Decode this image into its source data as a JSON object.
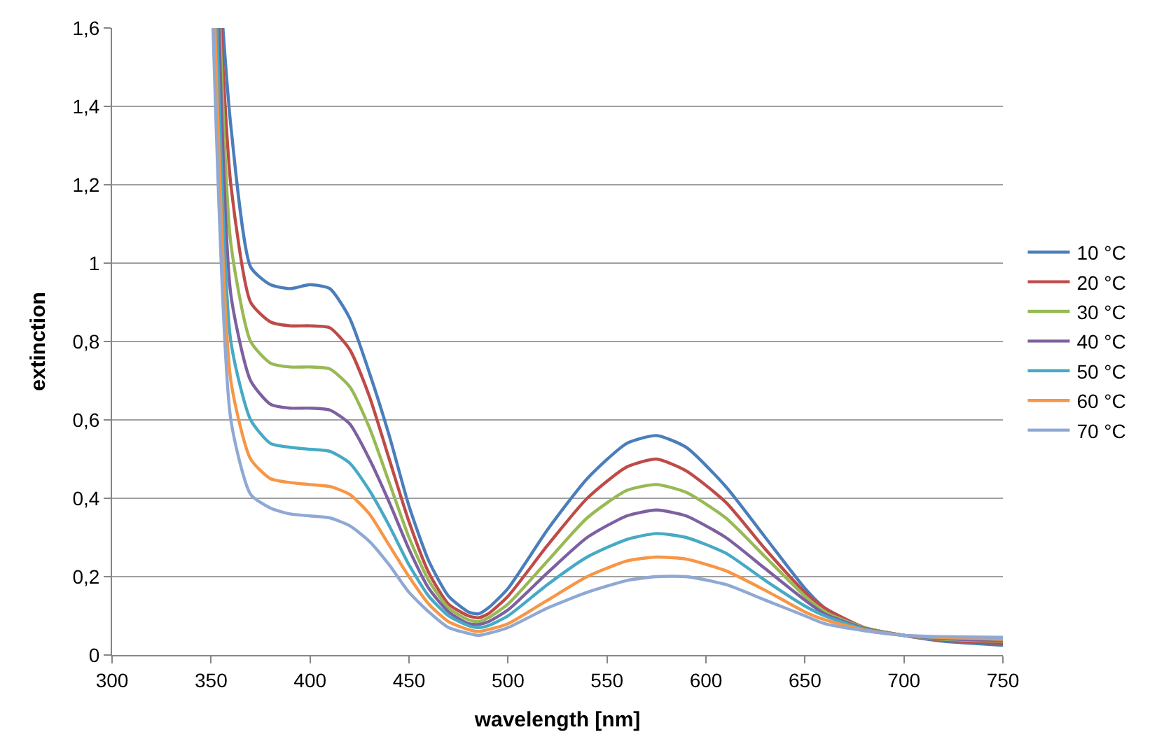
{
  "chart_data": {
    "type": "line",
    "xlabel": "wavelength [nm]",
    "ylabel": "extinction",
    "xlim": [
      300,
      750
    ],
    "xticks": [
      300,
      350,
      400,
      450,
      500,
      550,
      600,
      650,
      700,
      750
    ],
    "ylim": [
      0,
      1.6
    ],
    "yticks": [
      0,
      {
        "value": 0.2,
        "label": "0,2"
      },
      {
        "value": 0.4,
        "label": "0,4"
      },
      {
        "value": 0.6,
        "label": "0,6"
      },
      {
        "value": 0.8,
        "label": "0,8"
      },
      1,
      {
        "value": 1.2,
        "label": "1,2"
      },
      {
        "value": 1.4,
        "label": "1,4"
      },
      {
        "value": 1.6,
        "label": "1,6"
      }
    ],
    "grid": "y",
    "legend": "right",
    "marker": "none",
    "line_style": "solid",
    "series": [
      {
        "name": "10 °C",
        "color": "#4a7ebb",
        "x": [
          356,
          360,
          370,
          380,
          390,
          400,
          410,
          420,
          430,
          440,
          450,
          460,
          470,
          480,
          485,
          490,
          500,
          520,
          540,
          560,
          575,
          590,
          610,
          630,
          650,
          660,
          680,
          700,
          720,
          750
        ],
        "values": [
          1.6,
          1.35,
          0.99,
          0.945,
          0.935,
          0.945,
          0.935,
          0.86,
          0.72,
          0.56,
          0.38,
          0.24,
          0.15,
          0.11,
          0.105,
          0.12,
          0.17,
          0.32,
          0.45,
          0.54,
          0.56,
          0.53,
          0.43,
          0.3,
          0.17,
          0.12,
          0.07,
          0.05,
          0.035,
          0.025
        ]
      },
      {
        "name": "20 °C",
        "color": "#be4b48",
        "x": [
          355,
          360,
          370,
          380,
          390,
          400,
          410,
          420,
          430,
          440,
          450,
          460,
          470,
          480,
          485,
          490,
          500,
          520,
          540,
          560,
          575,
          590,
          610,
          630,
          650,
          660,
          680,
          700,
          720,
          750
        ],
        "values": [
          1.6,
          1.2,
          0.9,
          0.85,
          0.84,
          0.84,
          0.835,
          0.78,
          0.66,
          0.5,
          0.34,
          0.21,
          0.13,
          0.1,
          0.095,
          0.105,
          0.15,
          0.28,
          0.4,
          0.48,
          0.5,
          0.47,
          0.39,
          0.27,
          0.16,
          0.12,
          0.07,
          0.05,
          0.038,
          0.03
        ]
      },
      {
        "name": "30 °C",
        "color": "#98b954",
        "x": [
          354.5,
          360,
          370,
          380,
          390,
          400,
          410,
          420,
          430,
          440,
          450,
          460,
          470,
          480,
          485,
          490,
          500,
          520,
          540,
          560,
          575,
          590,
          610,
          630,
          650,
          660,
          680,
          700,
          720,
          750
        ],
        "values": [
          1.6,
          1.05,
          0.8,
          0.745,
          0.735,
          0.735,
          0.73,
          0.685,
          0.58,
          0.44,
          0.3,
          0.19,
          0.12,
          0.09,
          0.085,
          0.095,
          0.13,
          0.24,
          0.35,
          0.42,
          0.435,
          0.415,
          0.35,
          0.25,
          0.15,
          0.11,
          0.07,
          0.05,
          0.04,
          0.035
        ]
      },
      {
        "name": "40 °C",
        "color": "#7d60a0",
        "x": [
          354,
          360,
          370,
          380,
          390,
          400,
          410,
          420,
          430,
          440,
          450,
          460,
          470,
          480,
          485,
          490,
          500,
          520,
          540,
          560,
          575,
          590,
          610,
          630,
          650,
          660,
          680,
          700,
          720,
          750
        ],
        "values": [
          1.6,
          0.92,
          0.7,
          0.64,
          0.63,
          0.63,
          0.625,
          0.59,
          0.5,
          0.39,
          0.27,
          0.17,
          0.11,
          0.08,
          0.078,
          0.085,
          0.115,
          0.21,
          0.3,
          0.355,
          0.37,
          0.355,
          0.3,
          0.22,
          0.14,
          0.105,
          0.068,
          0.05,
          0.042,
          0.037
        ]
      },
      {
        "name": "50 °C",
        "color": "#46aac5",
        "x": [
          353,
          360,
          370,
          380,
          390,
          400,
          410,
          420,
          430,
          440,
          450,
          460,
          470,
          480,
          485,
          490,
          500,
          520,
          540,
          560,
          575,
          590,
          610,
          630,
          650,
          660,
          680,
          700,
          720,
          750
        ],
        "values": [
          1.6,
          0.8,
          0.6,
          0.54,
          0.53,
          0.525,
          0.52,
          0.49,
          0.42,
          0.33,
          0.23,
          0.15,
          0.1,
          0.075,
          0.07,
          0.075,
          0.1,
          0.18,
          0.25,
          0.295,
          0.31,
          0.3,
          0.26,
          0.19,
          0.125,
          0.1,
          0.066,
          0.05,
          0.044,
          0.04
        ]
      },
      {
        "name": "60 °C",
        "color": "#f79646",
        "x": [
          352,
          360,
          370,
          380,
          390,
          400,
          410,
          420,
          430,
          440,
          450,
          460,
          470,
          480,
          485,
          490,
          500,
          520,
          540,
          560,
          575,
          590,
          610,
          630,
          650,
          660,
          680,
          700,
          720,
          750
        ],
        "values": [
          1.6,
          0.7,
          0.5,
          0.45,
          0.44,
          0.435,
          0.43,
          0.41,
          0.36,
          0.28,
          0.2,
          0.13,
          0.085,
          0.065,
          0.06,
          0.065,
          0.08,
          0.14,
          0.2,
          0.24,
          0.25,
          0.245,
          0.215,
          0.165,
          0.11,
          0.09,
          0.064,
          0.05,
          0.045,
          0.04
        ]
      },
      {
        "name": "70 °C",
        "color": "#8fa9d4",
        "x": [
          351,
          360,
          370,
          380,
          390,
          400,
          410,
          420,
          430,
          440,
          450,
          460,
          470,
          480,
          485,
          490,
          500,
          520,
          540,
          560,
          575,
          590,
          610,
          630,
          650,
          660,
          680,
          700,
          720,
          750
        ],
        "values": [
          1.6,
          0.6,
          0.41,
          0.375,
          0.36,
          0.355,
          0.35,
          0.33,
          0.29,
          0.23,
          0.16,
          0.11,
          0.07,
          0.055,
          0.05,
          0.055,
          0.07,
          0.12,
          0.16,
          0.19,
          0.2,
          0.2,
          0.18,
          0.14,
          0.1,
          0.08,
          0.062,
          0.05,
          0.047,
          0.045
        ]
      }
    ]
  }
}
